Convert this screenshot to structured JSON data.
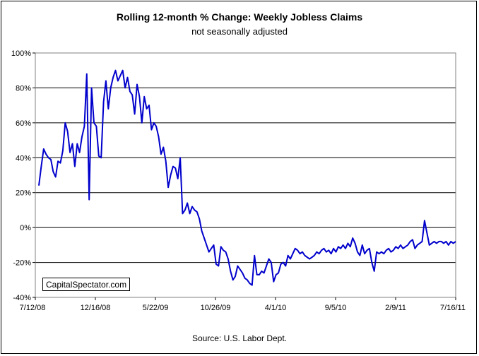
{
  "chart_data": {
    "type": "line",
    "title": "Rolling 12-month %  Change: Weekly Jobless Claims",
    "subtitle": "not seasonally adjusted",
    "source": "Source: U.S. Labor Dept.",
    "watermark": "CapitalSpectator.com",
    "xlabel": "",
    "ylabel": "",
    "ylim": [
      -40,
      100
    ],
    "yticks": [
      -40,
      -20,
      0,
      20,
      40,
      60,
      80,
      100
    ],
    "ytick_labels": [
      "-40%",
      "-20%",
      "0%",
      "20%",
      "40%",
      "60%",
      "80%",
      "100%"
    ],
    "xtick_labels": [
      "7/12/08",
      "12/16/08",
      "5/22/09",
      "10/26/09",
      "4/1/10",
      "9/5/10",
      "2/9/11",
      "7/16/11"
    ],
    "grid": true,
    "line_color": "#0000cc",
    "series_values": [
      24,
      35,
      45,
      42,
      40,
      39,
      32,
      29,
      38,
      37,
      44,
      60,
      55,
      43,
      48,
      35,
      48,
      43,
      52,
      58,
      88,
      16,
      80,
      60,
      58,
      41,
      40,
      72,
      84,
      68,
      80,
      86,
      90,
      84,
      87,
      90,
      80,
      86,
      78,
      76,
      65,
      82,
      75,
      60,
      75,
      68,
      70,
      56,
      60,
      58,
      52,
      42,
      46,
      38,
      23,
      30,
      35,
      34,
      28,
      40,
      8,
      10,
      14,
      8,
      12,
      10,
      9,
      5,
      -2,
      -6,
      -10,
      -14,
      -12,
      -10,
      -21,
      -22,
      -11,
      -13,
      -14,
      -18,
      -25,
      -30,
      -28,
      -22,
      -24,
      -26,
      -29,
      -30,
      -32,
      -33,
      -16,
      -27,
      -27,
      -25,
      -26,
      -22,
      -18,
      -20,
      -31,
      -27,
      -26,
      -21,
      -20,
      -22,
      -16,
      -18,
      -15,
      -12,
      -13,
      -15,
      -14,
      -16,
      -17,
      -18,
      -17,
      -16,
      -14,
      -15,
      -13,
      -12,
      -14,
      -13,
      -15,
      -12,
      -14,
      -11,
      -12,
      -10,
      -12,
      -9,
      -11,
      -6,
      -9,
      -14,
      -16,
      -10,
      -15,
      -13,
      -12,
      -20,
      -25,
      -14,
      -15,
      -14,
      -15,
      -13,
      -12,
      -14,
      -13,
      -11,
      -12,
      -10,
      -12,
      -11,
      -10,
      -8,
      -7,
      -12,
      -10,
      -9,
      -8,
      4,
      -3,
      -10,
      -9,
      -8,
      -9,
      -8,
      -8,
      -9,
      -8,
      -10,
      -8,
      -9,
      -8
    ]
  }
}
